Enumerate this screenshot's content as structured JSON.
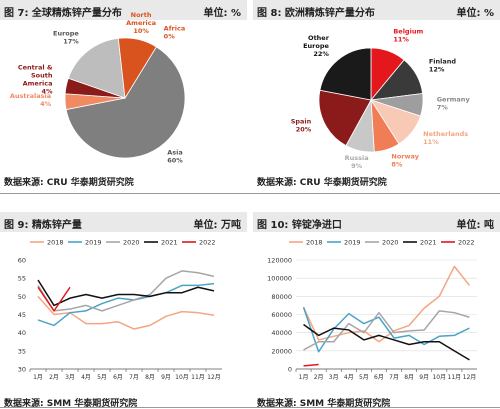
{
  "panels": [
    {
      "title": "图 7:  全球精炼锌产量分布",
      "unit": "单位:  %",
      "source": "数据来源:  CRU  华泰期货研究院"
    },
    {
      "title": "图 8:  欧洲精炼锌产量分布",
      "unit": "单位:  %",
      "source": "数据来源:  CRU  华泰期货研究院"
    },
    {
      "title": "图 9:  精炼锌产量",
      "unit": "单位:  万吨",
      "source": "数据来源:  SMM  华泰期货研究院"
    },
    {
      "title": "图 10:   锌锭净进口",
      "unit": "单位:  吨",
      "source": "数据来源:  SMM  华泰期货研究院"
    }
  ],
  "chart_data": [
    {
      "type": "pie",
      "slices": [
        {
          "label": "Asia",
          "value": 60,
          "value_text": "60%",
          "color": "#7f7f7f"
        },
        {
          "label": "Australasia",
          "value": 4,
          "value_text": "4%",
          "color": "#f08a63"
        },
        {
          "label": "Central & South America",
          "value": 4,
          "value_text": "4%",
          "color": "#8b1a1a"
        },
        {
          "label": "Europe",
          "value": 17,
          "value_text": "17%",
          "color": "#bdbdbd"
        },
        {
          "label": "North America",
          "value": 10,
          "value_text": "10%",
          "color": "#d9531e"
        },
        {
          "label": "Africa",
          "value": 0,
          "value_text": "0%",
          "color": "#f4a582"
        }
      ]
    },
    {
      "type": "pie",
      "slices": [
        {
          "label": "Belgium",
          "value": 11,
          "value_text": "11%",
          "color": "#e3171c"
        },
        {
          "label": "Finland",
          "value": 12,
          "value_text": "12%",
          "color": "#3a3a3a"
        },
        {
          "label": "Germany",
          "value": 7,
          "value_text": "7%",
          "color": "#9e9e9e"
        },
        {
          "label": "Netherlands",
          "value": 11,
          "value_text": "11%",
          "color": "#f8c9b5"
        },
        {
          "label": "Norway",
          "value": 8,
          "value_text": "8%",
          "color": "#f07d55"
        },
        {
          "label": "Russia",
          "value": 9,
          "value_text": "9%",
          "color": "#c8c8c8"
        },
        {
          "label": "Spain",
          "value": 20,
          "value_text": "20%",
          "color": "#8b1a1a"
        },
        {
          "label": "Other Europe",
          "value": 22,
          "value_text": "22%",
          "color": "#1a1a1a"
        }
      ]
    },
    {
      "type": "line",
      "categories": [
        "1月",
        "2月",
        "3月",
        "4月",
        "5月",
        "6月",
        "7月",
        "8月",
        "9月",
        "10月",
        "11月",
        "12月"
      ],
      "ylim": [
        30,
        60
      ],
      "yticks": [
        30,
        35,
        40,
        45,
        50,
        55,
        60
      ],
      "series": [
        {
          "name": "2018",
          "color": "#f4a582",
          "values": [
            50,
            45,
            45.5,
            42.5,
            42.5,
            43,
            41,
            42,
            44.5,
            45.8,
            45.5,
            44.8
          ]
        },
        {
          "name": "2019",
          "color": "#4aa3c8",
          "values": [
            43.5,
            42,
            45.5,
            46,
            48,
            49.5,
            49,
            50,
            51,
            53,
            53,
            53.5
          ]
        },
        {
          "name": "2020",
          "color": "#a6a6a6",
          "values": [
            53,
            46,
            46.5,
            47.5,
            46,
            47.5,
            49,
            50.5,
            55,
            57,
            56.5,
            55.5
          ]
        },
        {
          "name": "2021",
          "color": "#111111",
          "values": [
            54.5,
            47.5,
            49.5,
            50.5,
            49.5,
            50.5,
            50.5,
            50,
            51,
            51,
            52.5,
            51.5
          ]
        },
        {
          "name": "2022",
          "color": "#e3171c",
          "values": [
            52.5,
            46,
            52.5,
            null,
            null,
            null,
            null,
            null,
            null,
            null,
            null,
            null
          ]
        }
      ]
    },
    {
      "type": "line",
      "categories": [
        "1月",
        "2月",
        "3月",
        "4月",
        "5月",
        "6月",
        "7月",
        "8月",
        "9月",
        "10月",
        "11月",
        "12月"
      ],
      "ylim": [
        0,
        120000
      ],
      "yticks": [
        0,
        20000,
        40000,
        60000,
        80000,
        100000,
        120000
      ],
      "series": [
        {
          "name": "2018",
          "color": "#f4a582",
          "values": [
            68000,
            32000,
            36000,
            40000,
            42000,
            30000,
            42000,
            48000,
            67000,
            80000,
            113000,
            92000
          ]
        },
        {
          "name": "2019",
          "color": "#4aa3c8",
          "values": [
            68000,
            19000,
            44000,
            61000,
            50000,
            57000,
            34000,
            37000,
            27000,
            36000,
            37000,
            45000
          ]
        },
        {
          "name": "2020",
          "color": "#a6a6a6",
          "values": [
            21000,
            30000,
            30000,
            50000,
            40000,
            62000,
            40000,
            42000,
            43000,
            64000,
            62000,
            57000
          ]
        },
        {
          "name": "2021",
          "color": "#111111",
          "values": [
            49000,
            37000,
            45000,
            43000,
            32000,
            37000,
            32000,
            27000,
            30000,
            30000,
            20000,
            10000
          ]
        },
        {
          "name": "2022",
          "color": "#e3171c",
          "values": [
            3500,
            5000,
            null,
            null,
            null,
            null,
            null,
            null,
            null,
            null,
            null,
            null
          ]
        }
      ]
    }
  ]
}
